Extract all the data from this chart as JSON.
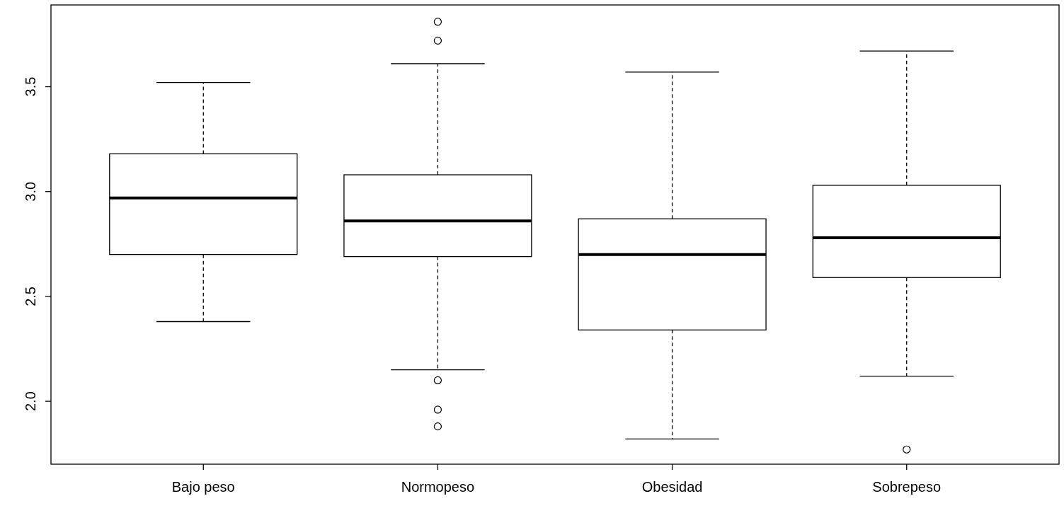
{
  "chart_data": {
    "type": "box",
    "categories": [
      "Bajo peso",
      "Normopeso",
      "Obesidad",
      "Sobrepeso"
    ],
    "boxes": [
      {
        "low": 2.38,
        "q1": 2.7,
        "median": 2.97,
        "q3": 3.18,
        "high": 3.52
      },
      {
        "low": 2.15,
        "q1": 2.69,
        "median": 2.86,
        "q3": 3.08,
        "high": 3.61,
        "outliers": [
          3.81,
          3.72,
          2.1,
          1.96,
          1.88
        ]
      },
      {
        "low": 1.82,
        "q1": 2.34,
        "median": 2.7,
        "q3": 2.87,
        "high": 3.57
      },
      {
        "low": 2.12,
        "q1": 2.59,
        "median": 2.78,
        "q3": 3.03,
        "high": 3.67,
        "outliers": [
          1.77
        ]
      }
    ],
    "ylim": [
      1.7,
      3.89
    ],
    "yticks": [
      {
        "value": 2,
        "label": "2.0"
      },
      {
        "value": 2.5,
        "label": "2.5"
      },
      {
        "value": 3,
        "label": "3.0"
      },
      {
        "value": 3.5,
        "label": "3.5"
      }
    ]
  }
}
